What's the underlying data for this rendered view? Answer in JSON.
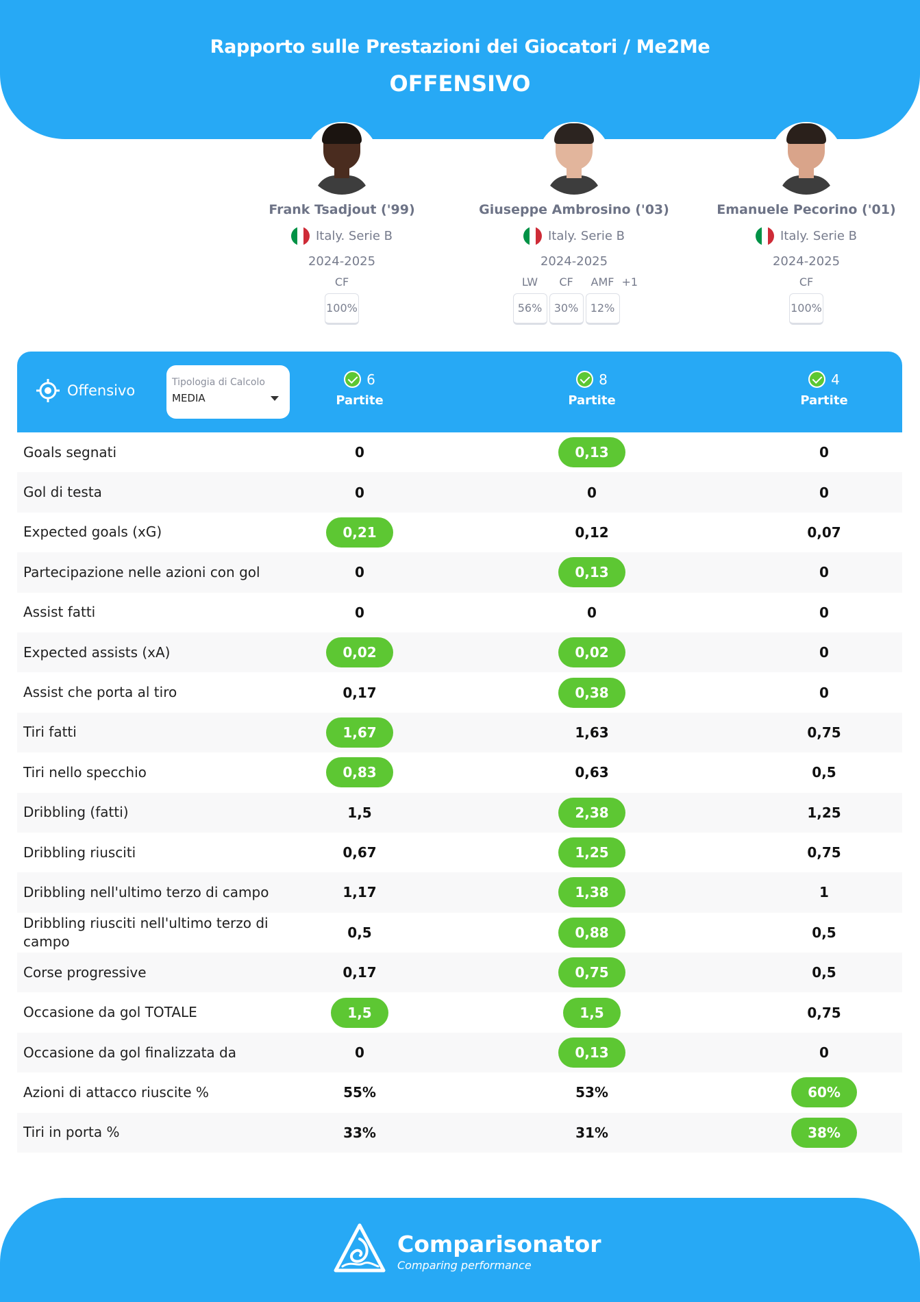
{
  "header": {
    "title": "Rapporto sulle Prestazioni dei Giocatori / Me2Me",
    "subtitle": "OFFENSIVO"
  },
  "players": [
    {
      "name": "Frank Tsadjout ('99)",
      "league": "Italy. Serie B",
      "season": "2024-2025",
      "positions": [
        {
          "label": "CF",
          "pct": "100%"
        }
      ],
      "extra": "",
      "matches": "6",
      "skin": "#4a2c1f",
      "hair": "#1b1410"
    },
    {
      "name": "Giuseppe Ambrosino ('03)",
      "league": "Italy. Serie B",
      "season": "2024-2025",
      "positions": [
        {
          "label": "LW",
          "pct": "56%"
        },
        {
          "label": "CF",
          "pct": "30%"
        },
        {
          "label": "AMF",
          "pct": "12%"
        }
      ],
      "extra": "+1",
      "matches": "8",
      "skin": "#e2b59c",
      "hair": "#2c2420"
    },
    {
      "name": "Emanuele Pecorino ('01)",
      "league": "Italy. Serie B",
      "season": "2024-2025",
      "positions": [
        {
          "label": "CF",
          "pct": "100%"
        }
      ],
      "extra": "",
      "matches": "4",
      "skin": "#d9a48a",
      "hair": "#2a201b"
    }
  ],
  "panel": {
    "section_label": "Offensivo",
    "section_icon": "target-icon",
    "calc_label": "Tipologia di Calcolo",
    "calc_value": "MEDIA",
    "matches_label": "Partite"
  },
  "rows": [
    {
      "label": "Goals segnati",
      "values": [
        "0",
        "0,13",
        "0"
      ],
      "best": [
        false,
        true,
        false
      ]
    },
    {
      "label": "Gol di testa",
      "values": [
        "0",
        "0",
        "0"
      ],
      "best": [
        false,
        false,
        false
      ]
    },
    {
      "label": "Expected goals (xG)",
      "values": [
        "0,21",
        "0,12",
        "0,07"
      ],
      "best": [
        true,
        false,
        false
      ]
    },
    {
      "label": "Partecipazione nelle azioni con gol",
      "values": [
        "0",
        "0,13",
        "0"
      ],
      "best": [
        false,
        true,
        false
      ]
    },
    {
      "label": "Assist fatti",
      "values": [
        "0",
        "0",
        "0"
      ],
      "best": [
        false,
        false,
        false
      ]
    },
    {
      "label": "Expected assists (xA)",
      "values": [
        "0,02",
        "0,02",
        "0"
      ],
      "best": [
        true,
        true,
        false
      ]
    },
    {
      "label": "Assist che porta al tiro",
      "values": [
        "0,17",
        "0,38",
        "0"
      ],
      "best": [
        false,
        true,
        false
      ]
    },
    {
      "label": "Tiri fatti",
      "values": [
        "1,67",
        "1,63",
        "0,75"
      ],
      "best": [
        true,
        false,
        false
      ]
    },
    {
      "label": "Tiri nello specchio",
      "values": [
        "0,83",
        "0,63",
        "0,5"
      ],
      "best": [
        true,
        false,
        false
      ]
    },
    {
      "label": "Dribbling (fatti)",
      "values": [
        "1,5",
        "2,38",
        "1,25"
      ],
      "best": [
        false,
        true,
        false
      ]
    },
    {
      "label": "Dribbling riusciti",
      "values": [
        "0,67",
        "1,25",
        "0,75"
      ],
      "best": [
        false,
        true,
        false
      ]
    },
    {
      "label": "Dribbling nell'ultimo terzo di campo",
      "values": [
        "1,17",
        "1,38",
        "1"
      ],
      "best": [
        false,
        true,
        false
      ]
    },
    {
      "label": "Dribbling riusciti nell'ultimo terzo di campo",
      "values": [
        "0,5",
        "0,88",
        "0,5"
      ],
      "best": [
        false,
        true,
        false
      ]
    },
    {
      "label": "Corse progressive",
      "values": [
        "0,17",
        "0,75",
        "0,5"
      ],
      "best": [
        false,
        true,
        false
      ]
    },
    {
      "label": "Occasione da gol TOTALE",
      "values": [
        "1,5",
        "1,5",
        "0,75"
      ],
      "best": [
        true,
        true,
        false
      ]
    },
    {
      "label": "Occasione da gol finalizzata da",
      "values": [
        "0",
        "0,13",
        "0"
      ],
      "best": [
        false,
        true,
        false
      ]
    },
    {
      "label": "Azioni di attacco riuscite %",
      "values": [
        "55%",
        "53%",
        "60%"
      ],
      "best": [
        false,
        false,
        true
      ]
    },
    {
      "label": "Tiri in porta %",
      "values": [
        "33%",
        "31%",
        "38%"
      ],
      "best": [
        false,
        false,
        true
      ]
    }
  ],
  "footer": {
    "brand": "Comparisonator",
    "tagline": "Comparing performance",
    "logo_icon": "comparisonator-logo-icon"
  },
  "colors": {
    "primary": "#27a9f5",
    "best": "#5dc733",
    "flag_green": "#009246",
    "flag_white": "#ffffff",
    "flag_red": "#ce2b37"
  }
}
